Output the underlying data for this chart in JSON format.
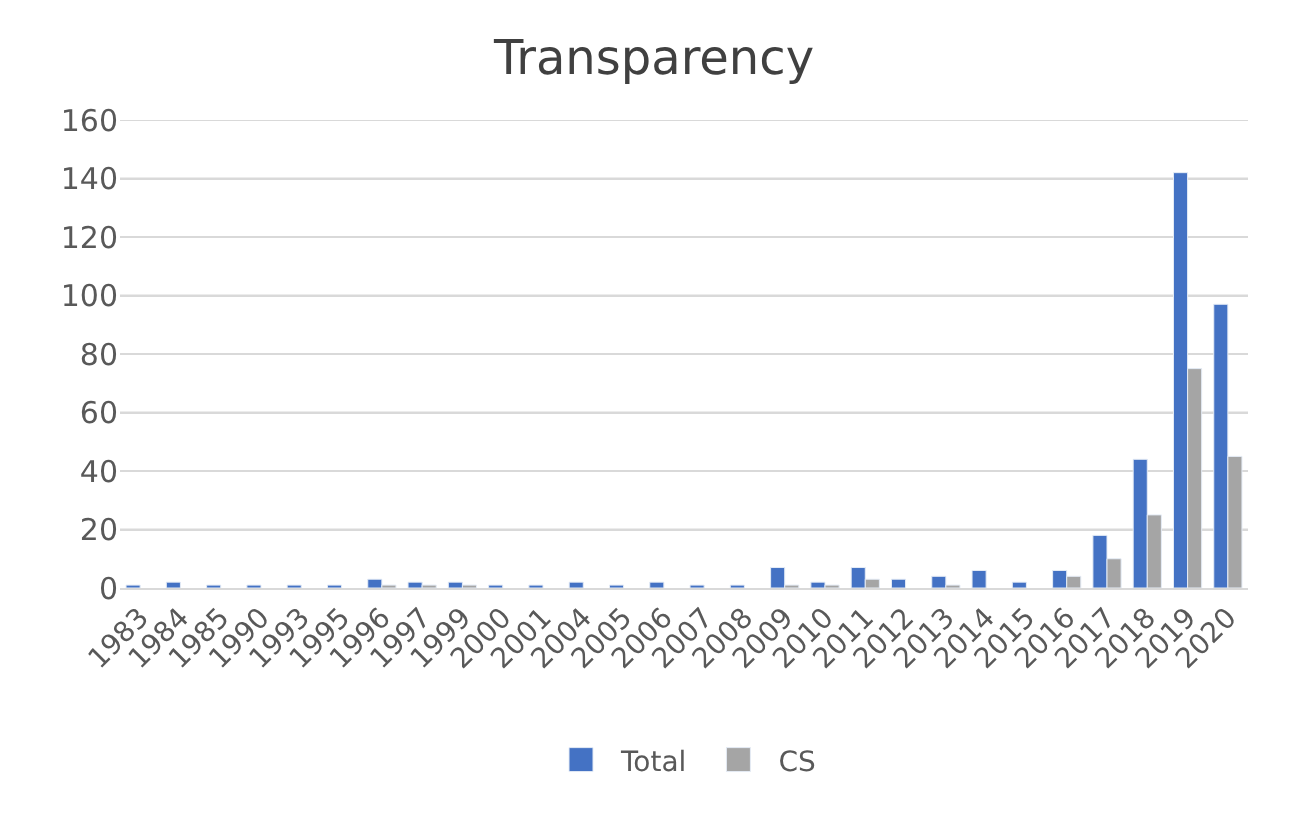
{
  "chart_data": {
    "type": "bar",
    "title": "Transparency",
    "categories": [
      "1983",
      "1984",
      "1985",
      "1990",
      "1993",
      "1995",
      "1996",
      "1997",
      "1999",
      "2000",
      "2001",
      "2004",
      "2005",
      "2006",
      "2007",
      "2008",
      "2009",
      "2010",
      "2011",
      "2012",
      "2013",
      "2014",
      "2015",
      "2016",
      "2017",
      "2018",
      "2019",
      "2020"
    ],
    "series": [
      {
        "name": "Total",
        "color": "#4472c4",
        "values": [
          1,
          2,
          1,
          1,
          1,
          1,
          3,
          2,
          2,
          1,
          1,
          2,
          1,
          2,
          1,
          1,
          7,
          2,
          7,
          3,
          4,
          6,
          2,
          6,
          18,
          44,
          142,
          97
        ]
      },
      {
        "name": "CS",
        "color": "#a5a5a5",
        "values": [
          null,
          null,
          null,
          null,
          null,
          null,
          1,
          1,
          1,
          null,
          null,
          null,
          null,
          null,
          null,
          null,
          1,
          1,
          3,
          null,
          1,
          null,
          null,
          4,
          10,
          25,
          75,
          45
        ]
      }
    ],
    "ylim": [
      0,
      160
    ],
    "yticks": [
      0,
      20,
      40,
      60,
      80,
      100,
      120,
      140,
      160
    ],
    "grid": "y",
    "legend": "bottom"
  }
}
